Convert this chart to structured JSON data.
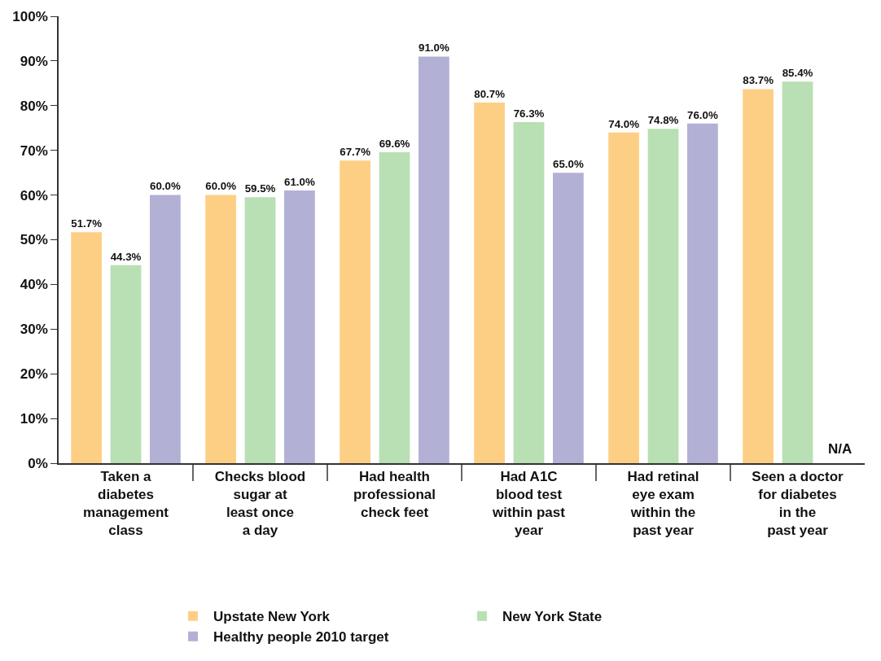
{
  "chart_data": {
    "type": "bar",
    "categories": [
      "Taken a\ndiabetes\nmanagement\nclass",
      "Checks blood\nsugar at\nleast once\na day",
      "Had health\nprofessional\ncheck feet",
      "Had A1C\nblood test\nwithin past\nyear",
      "Had retinal\neye exam\nwithin the\npast year",
      "Seen a doctor\nfor diabetes\nin the\npast year"
    ],
    "series": [
      {
        "name": "Upstate New York",
        "color": "#fdcf85",
        "values": [
          51.7,
          60.0,
          67.7,
          80.7,
          74.0,
          83.7
        ],
        "value_labels": [
          "51.7%",
          "60.0%",
          "67.7%",
          "80.7%",
          "74.0%",
          "83.7%"
        ]
      },
      {
        "name": "New York State",
        "color": "#b9dfb4",
        "values": [
          44.3,
          59.5,
          69.6,
          76.3,
          74.8,
          85.4
        ],
        "value_labels": [
          "44.3%",
          "59.5%",
          "69.6%",
          "76.3%",
          "74.8%",
          "85.4%"
        ]
      },
      {
        "name": "Healthy people 2010 target",
        "color": "#b3b0d6",
        "values": [
          60.0,
          61.0,
          91.0,
          65.0,
          76.0,
          null
        ],
        "value_labels": [
          "60.0%",
          "61.0%",
          "91.0%",
          "65.0%",
          "76.0%",
          "N/A"
        ]
      }
    ],
    "ylim": [
      0,
      100
    ],
    "yticks": [
      {
        "value": 0,
        "label": "0%"
      },
      {
        "value": 10,
        "label": "10%"
      },
      {
        "value": 20,
        "label": "20%"
      },
      {
        "value": 30,
        "label": "30%"
      },
      {
        "value": 40,
        "label": "40%"
      },
      {
        "value": 50,
        "label": "50%"
      },
      {
        "value": 60,
        "label": "60%"
      },
      {
        "value": 70,
        "label": "70%"
      },
      {
        "value": 80,
        "label": "80%"
      },
      {
        "value": 90,
        "label": "90%"
      },
      {
        "value": 100,
        "label": "100%"
      }
    ],
    "grid": false,
    "legend": "bottom"
  }
}
